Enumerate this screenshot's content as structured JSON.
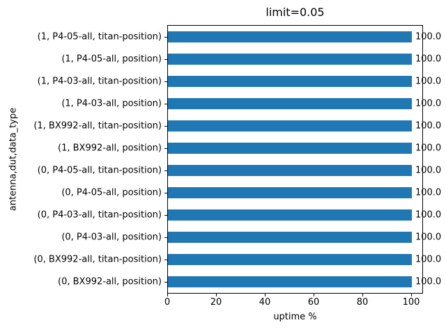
{
  "figure": {
    "background": "#ffffff",
    "text_color": "#000000"
  },
  "chart_data": {
    "type": "bar",
    "orientation": "horizontal",
    "title": "limit=0.05",
    "xlabel": "uptime %",
    "ylabel": "antenna,dut,data_type",
    "categories": [
      "(1, P4-05-all, titan-position)",
      "(1, P4-05-all, position)",
      "(1, P4-03-all, titan-position)",
      "(1, P4-03-all, position)",
      "(1, BX992-all, titan-position)",
      "(1, BX992-all, position)",
      "(0, P4-05-all, titan-position)",
      "(0, P4-05-all, position)",
      "(0, P4-03-all, titan-position)",
      "(0, P4-03-all, position)",
      "(0, BX992-all, titan-position)",
      "(0, BX992-all, position)"
    ],
    "categories_order": "top-to-bottom",
    "values": [
      100.0,
      100.0,
      100.0,
      100.0,
      100.0,
      100.0,
      100.0,
      100.0,
      100.0,
      100.0,
      100.0,
      100.0
    ],
    "bar_labels": [
      "100.0",
      "100.0",
      "100.0",
      "100.0",
      "100.0",
      "100.0",
      "100.0",
      "100.0",
      "100.0",
      "100.0",
      "100.0",
      "100.0"
    ],
    "xticks": [
      0,
      20,
      40,
      60,
      80,
      100
    ],
    "xlim": [
      0,
      104.29
    ],
    "bar_color": "#1f77b4",
    "grid": false,
    "legend": null
  }
}
